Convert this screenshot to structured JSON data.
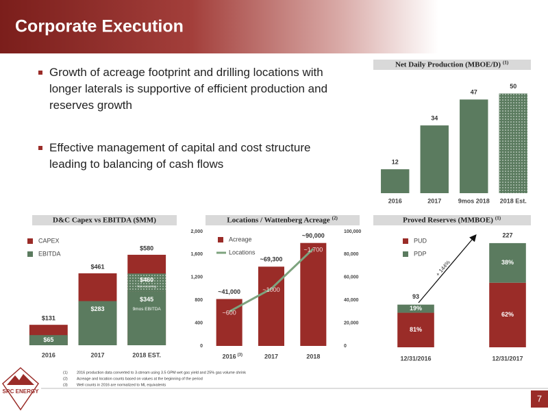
{
  "header": {
    "title": "Corporate Execution"
  },
  "bullets": [
    "Growth of acreage footprint and drilling locations with longer laterals is supportive of efficient production and reserves growth",
    "Effective management of capital and cost structure leading to balancing of cash flows"
  ],
  "chart_data": [
    {
      "type": "bar",
      "title": "Net Daily Production (MBOE/D)",
      "title_note": "(1)",
      "categories": [
        "2016",
        "2017",
        "9mos 2018",
        "2018 Est."
      ],
      "values": [
        12,
        34,
        47,
        50
      ],
      "color": "#5b7b5f",
      "patterned": [
        false,
        false,
        false,
        true
      ],
      "ylim": [
        0,
        55
      ]
    },
    {
      "type": "overlap_bar",
      "title": "D&C Capex vs EBITDA ($MM)",
      "categories": [
        "2016",
        "2017",
        "2018 EST."
      ],
      "series": [
        {
          "name": "CAPEX",
          "color": "#9a2c28",
          "values": [
            131,
            461,
            580
          ],
          "value_labels": [
            "$131",
            "$461",
            "$580"
          ]
        },
        {
          "name": "EBITDA",
          "color": "#5b7b5f",
          "values": [
            65,
            283,
            345
          ],
          "value_labels": [
            "$65",
            "$283",
            "$345"
          ],
          "notes": [
            null,
            null,
            "9mos EBITDA"
          ]
        }
      ],
      "estimate": {
        "values": [
          null,
          null,
          460
        ],
        "value_labels": [
          null,
          null,
          "$460"
        ],
        "note": "Non-recurring"
      },
      "ylim": [
        0,
        650
      ],
      "legend": "top-left"
    },
    {
      "type": "combo",
      "title": "Locations / Wattenberg Acreage",
      "title_note": "(2)",
      "categories": [
        "2016",
        "2017",
        "2018"
      ],
      "category_notes": [
        "(3)",
        null,
        null
      ],
      "series": [
        {
          "name": "Acreage",
          "type": "bar",
          "axis": "y2",
          "color": "#9a2c28",
          "values": [
            41000,
            69300,
            90000
          ],
          "value_labels": [
            "~41,000",
            "~69,300",
            "~90,000"
          ]
        },
        {
          "name": "Locations",
          "type": "line",
          "color": "#7da37e",
          "values": [
            600,
            1000,
            1700
          ],
          "value_labels": [
            "~600",
            "~1000",
            "~1,700"
          ]
        }
      ],
      "ylim": [
        0,
        2000
      ],
      "yticks": [
        0,
        400,
        800,
        {
          "value": 1200,
          "label": "1,200"
        },
        {
          "value": 1600,
          "label": "1,600"
        },
        {
          "value": 2000,
          "label": "2,000"
        }
      ],
      "y2lim": [
        0,
        100000
      ],
      "y2ticks": [
        0,
        {
          "value": 20000,
          "label": "20,000"
        },
        {
          "value": 40000,
          "label": "40,000"
        },
        {
          "value": 60000,
          "label": "60,000"
        },
        {
          "value": 80000,
          "label": "80,000"
        },
        {
          "value": 100000,
          "label": "100,000"
        }
      ],
      "legend": "top-left"
    },
    {
      "type": "stacked_bar",
      "title": "Proved Reserves (MMBOE)",
      "title_note": "(1)",
      "categories": [
        "12/31/2016",
        "12/31/2017"
      ],
      "series": [
        {
          "name": "PUD",
          "color": "#9a2c28",
          "values": [
            75.3,
            140.7
          ],
          "share_labels": [
            "81%",
            "62%"
          ]
        },
        {
          "name": "PDP",
          "color": "#5b7b5f",
          "values": [
            17.7,
            86.3
          ],
          "share_labels": [
            "19%",
            "38%"
          ]
        }
      ],
      "totals": [
        93,
        227
      ],
      "annotation": "+ 144%",
      "ylim": [
        0,
        250
      ],
      "legend": "top-left"
    }
  ],
  "footnotes": [
    {
      "marker": "(1)",
      "text": "2016 production data converted to 3-stream using 3.5 GPM wet gas yield and 25% gas volume shrink"
    },
    {
      "marker": "(2)",
      "text": "Acreage and location counts based on values at the beginning of the period"
    },
    {
      "marker": "(3)",
      "text": "Well counts in 2016 are normalized to ML equivalents"
    }
  ],
  "logo": {
    "text": "SRC ENERGY"
  },
  "page_number": "7"
}
